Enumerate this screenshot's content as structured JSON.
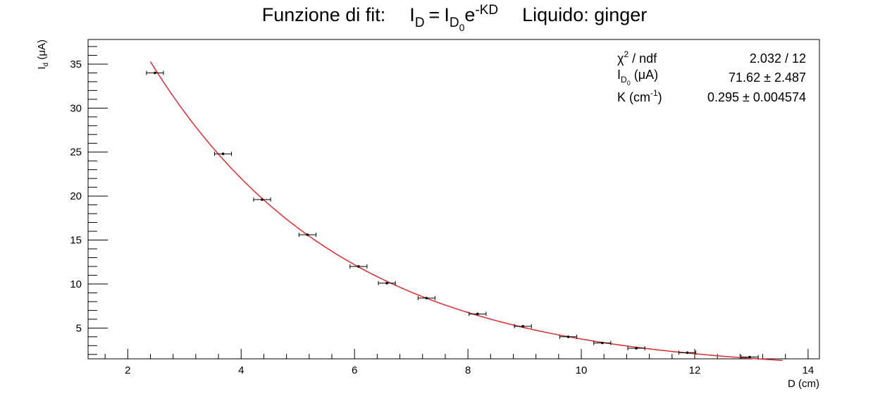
{
  "chart_data": {
    "type": "scatter",
    "title": {
      "prefix": "Funzione di fit:",
      "lhs_symbol": "I",
      "lhs_sub": "D",
      "equals": "=",
      "rhs_symbol": "I",
      "rhs_sub": "D",
      "rhs_subsub": "0",
      "exp_base": "e",
      "exp_sup": "-KD",
      "suffix": "Liquido: ginger"
    },
    "xlabel": "D (cm)",
    "ylabel": {
      "symbol": "I",
      "sub": "d",
      "unit": " (μA)"
    },
    "xlim": [
      1.3,
      14.2
    ],
    "ylim": [
      1.5,
      37.8
    ],
    "xticks": [
      2,
      4,
      6,
      8,
      10,
      12,
      14
    ],
    "yticks": [
      5,
      10,
      15,
      20,
      25,
      30,
      35
    ],
    "grid": false,
    "points": [
      {
        "x": 2.48,
        "y": 34.0,
        "xerr": 0.15,
        "yerr": 0.1
      },
      {
        "x": 3.68,
        "y": 24.8,
        "xerr": 0.15,
        "yerr": 0.1
      },
      {
        "x": 4.37,
        "y": 19.6,
        "xerr": 0.15,
        "yerr": 0.1
      },
      {
        "x": 5.17,
        "y": 15.6,
        "xerr": 0.15,
        "yerr": 0.1
      },
      {
        "x": 6.07,
        "y": 12.0,
        "xerr": 0.15,
        "yerr": 0.1
      },
      {
        "x": 6.57,
        "y": 10.1,
        "xerr": 0.15,
        "yerr": 0.1
      },
      {
        "x": 7.27,
        "y": 8.4,
        "xerr": 0.15,
        "yerr": 0.1
      },
      {
        "x": 8.17,
        "y": 6.6,
        "xerr": 0.15,
        "yerr": 0.1
      },
      {
        "x": 8.97,
        "y": 5.2,
        "xerr": 0.15,
        "yerr": 0.1
      },
      {
        "x": 9.77,
        "y": 4.0,
        "xerr": 0.15,
        "yerr": 0.1
      },
      {
        "x": 10.37,
        "y": 3.3,
        "xerr": 0.15,
        "yerr": 0.1
      },
      {
        "x": 10.97,
        "y": 2.7,
        "xerr": 0.15,
        "yerr": 0.1
      },
      {
        "x": 11.87,
        "y": 2.2,
        "xerr": 0.15,
        "yerr": 0.1
      },
      {
        "x": 12.97,
        "y": 1.7,
        "xerr": 0.15,
        "yerr": 0.1
      }
    ],
    "fit": {
      "model": "exponential",
      "I0": 71.62,
      "K": 0.295,
      "x_range": [
        2.4,
        13.55
      ],
      "color": "#d9383a"
    },
    "point_color": "#000000",
    "stats_box": {
      "chi2_label": {
        "symbol": "χ",
        "sup": "2",
        "rest": " / ndf"
      },
      "chi2_value": "2.032 / 12",
      "i0_label": {
        "symbol": "I",
        "sub": "D",
        "subsub": "0",
        "rest": " (μA)"
      },
      "i0_value": "71.62 ± 2.487",
      "k_label": {
        "prefix": "K (cm",
        "sup": "-1",
        "suffix": ")"
      },
      "k_value": "0.295 ± 0.004574"
    }
  }
}
